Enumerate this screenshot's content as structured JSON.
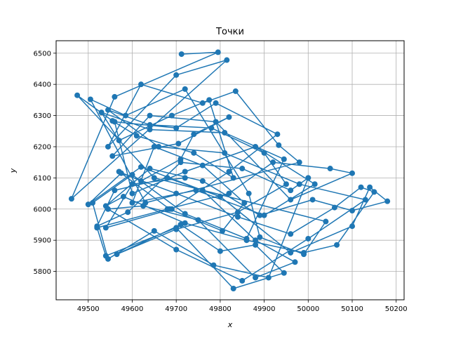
{
  "chart_data": {
    "type": "line",
    "title": "Точки",
    "xlabel": "x",
    "ylabel": "y",
    "xlim": [
      49427,
      50218
    ],
    "ylim": [
      5709,
      6540
    ],
    "xticks": [
      49500,
      49600,
      49700,
      49800,
      49900,
      50000,
      50100,
      50200
    ],
    "yticks": [
      5800,
      5900,
      6000,
      6100,
      6200,
      6300,
      6400,
      6500
    ],
    "xtick_labels": [
      "49500",
      "49600",
      "49700",
      "49800",
      "49900",
      "50000",
      "50100",
      "50200"
    ],
    "ytick_labels": [
      "5800",
      "5900",
      "6000",
      "6100",
      "6200",
      "6300",
      "6400",
      "6500"
    ],
    "grid": true,
    "markers": true,
    "color": "#1f77b4",
    "series": [
      {
        "x": [
          49712,
          49795,
          49560,
          49462,
          49815,
          49700,
          49545,
          49620,
          49760,
          49835,
          49933,
          49980,
          49630,
          49505,
          49585,
          49720,
          49865,
          49890,
          49990,
          50040,
          49650,
          49475,
          49555,
          49610,
          49740,
          49830,
          49775,
          49690,
          49570,
          49530,
          49640,
          49810,
          49945,
          49860,
          49720,
          49600,
          49510,
          49545,
          49650,
          49785,
          49910,
          50000,
          49960,
          49850,
          49710,
          49590,
          49520,
          49560,
          49680,
          49800,
          49960,
          50100,
          50140,
          50180,
          50100,
          50010,
          49890,
          49760,
          49640,
          49540,
          49580,
          49720,
          49860,
          49990,
          50065,
          50150,
          50120,
          50060,
          49960,
          49840,
          49700,
          49575,
          49500,
          49620,
          49760,
          49880,
          49970,
          49880,
          49750,
          49625,
          49545,
          49700,
          49850,
          50000,
          50130,
          49980,
          49810,
          49660,
          49545,
          49640,
          49780,
          49900,
          49950,
          49840,
          49700,
          49565,
          49710,
          49800,
          49880,
          49945,
          49830,
          49700,
          49540,
          49520,
          49680,
          49820,
          49920,
          50050,
          50100,
          49960,
          49790,
          49640,
          49555,
          49705,
          49820,
          49740,
          49710,
          49620,
          49570,
          49685,
          49805,
          49855,
          49760,
          49650,
          49600,
          49745,
          49900,
          50015,
          49880,
          49720,
          49600,
          49560,
          49700,
          49790,
          49930,
          49820,
          49690,
          49540,
          49600,
          49720
        ],
        "y": [
          6497,
          6503,
          6360,
          6033,
          6478,
          6430,
          6200,
          6400,
          6340,
          6378,
          6205,
          6150,
          6020,
          6352,
          6300,
          6385,
          6050,
          5910,
          5855,
          5960,
          6100,
          6365,
          6283,
          6235,
          6180,
          6100,
          6350,
          6300,
          6220,
          6310,
          6255,
          6245,
          6160,
          5905,
          5985,
          6110,
          6020,
          5840,
          5930,
          5820,
          5780,
          6100,
          6060,
          6130,
          6150,
          5990,
          5945,
          6060,
          6100,
          6040,
          5860,
          5945,
          6070,
          6025,
          5995,
          6030,
          5980,
          6090,
          6130,
          6010,
          6040,
          5955,
          5900,
          5860,
          5885,
          6055,
          6070,
          6005,
          5920,
          5975,
          6050,
          6115,
          6015,
          6135,
          6060,
          5900,
          5830,
          5780,
          5965,
          6010,
          6000,
          5870,
          5770,
          5905,
          6030,
          6080,
          6180,
          6200,
          6318,
          6270,
          6260,
          6180,
          6080,
          5990,
          5935,
          5855,
          5950,
          5865,
          5885,
          5795,
          5745,
          5940,
          5850,
          5940,
          6000,
          6050,
          6150,
          6130,
          6115,
          6030,
          6280,
          6300,
          6170,
          6210,
          6295,
          6240,
          6160,
          6090,
          6120,
          6000,
          5930,
          6020,
          6140,
          6200,
          6020,
          6060,
          5980,
          6080,
          6200,
          6120,
          6050,
          6280,
          6260,
          6340,
          6240,
          6120,
          6000,
          5940,
          6080,
          6100
        ]
      }
    ]
  }
}
